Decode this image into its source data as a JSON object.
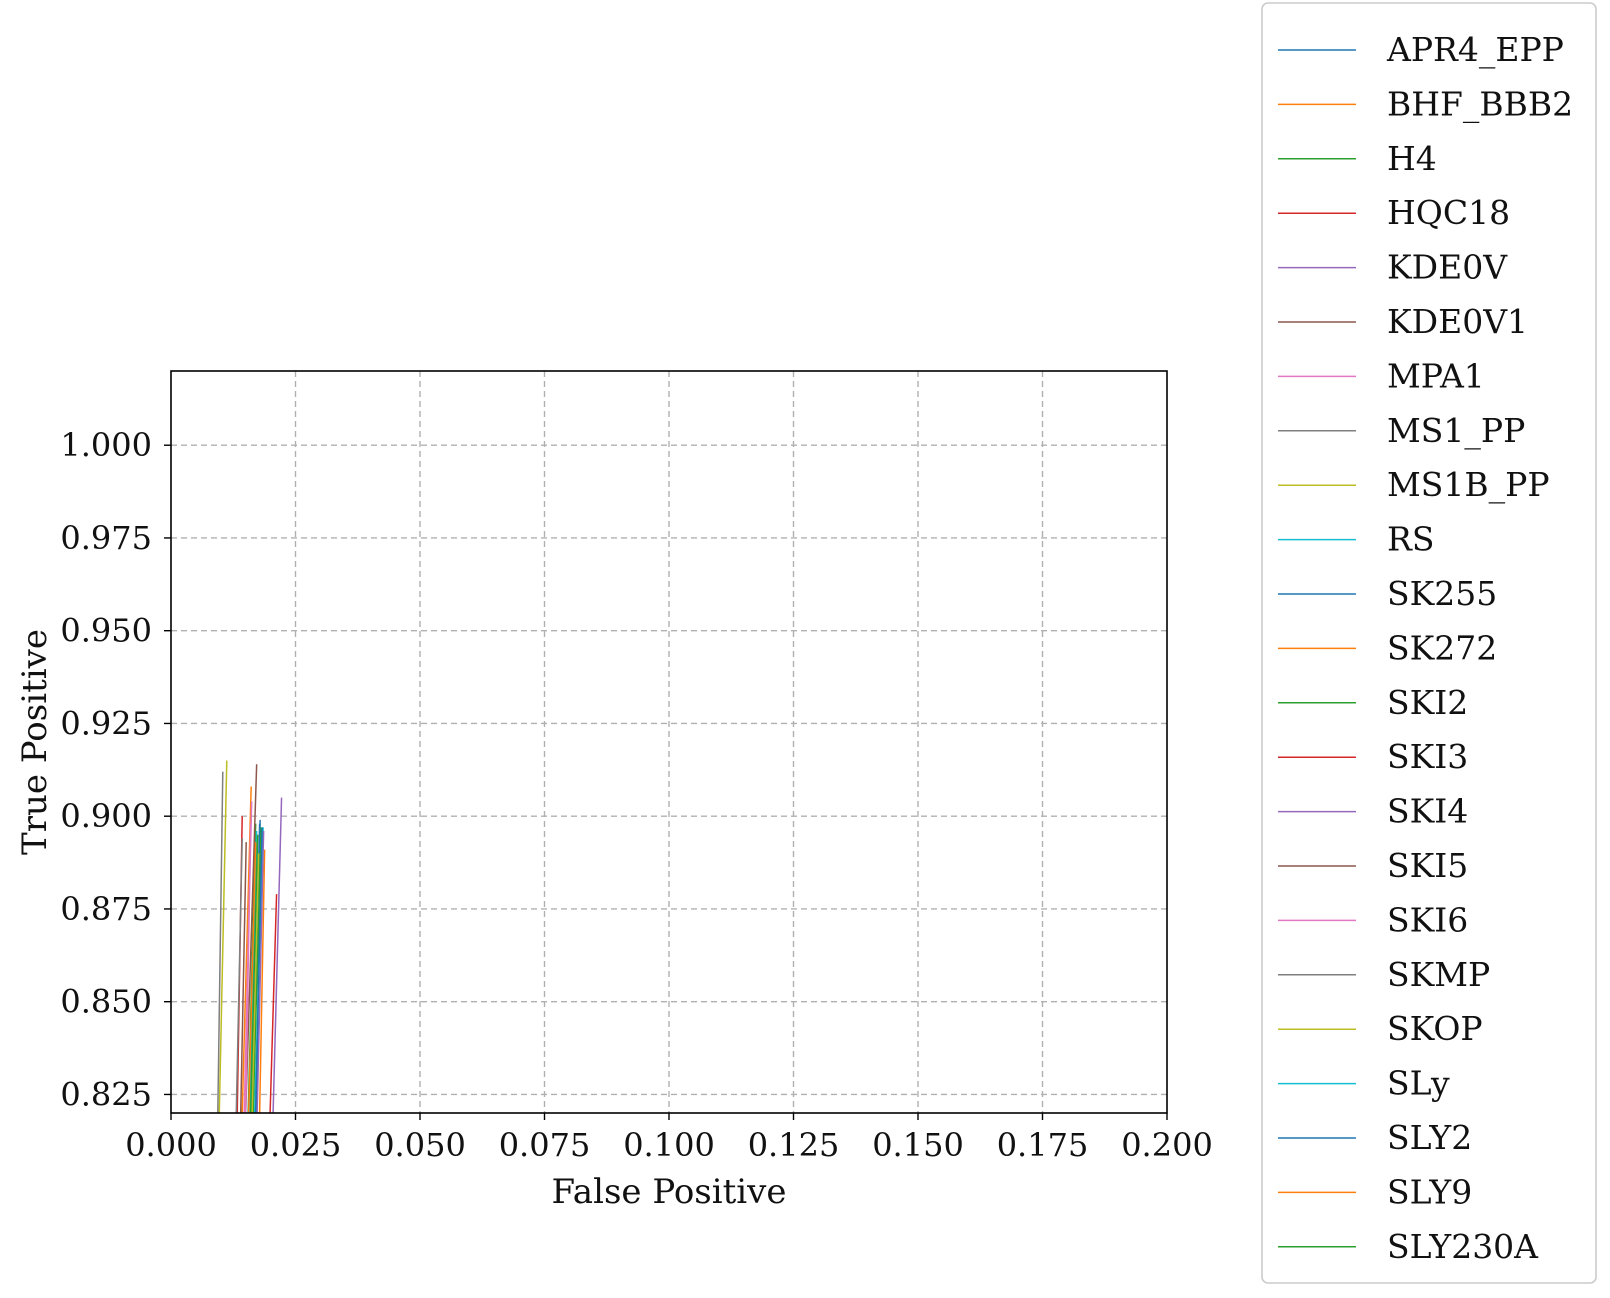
{
  "chart_data": {
    "type": "line",
    "title": "",
    "xlabel": "False Positive",
    "ylabel": "True Positive",
    "xlim": [
      0.0,
      0.2
    ],
    "ylim": [
      0.82,
      1.02
    ],
    "grid": true,
    "legend_placement": "outside-right",
    "x_ticks": [
      0.0,
      0.025,
      0.05,
      0.075,
      0.1,
      0.125,
      0.15,
      0.175,
      0.2
    ],
    "x_tick_labels": [
      "0.000",
      "0.025",
      "0.050",
      "0.075",
      "0.100",
      "0.125",
      "0.150",
      "0.175",
      "0.200"
    ],
    "y_ticks": [
      0.825,
      0.85,
      0.875,
      0.9,
      0.925,
      0.95,
      0.975,
      1.0
    ],
    "y_tick_labels": [
      "0.825",
      "0.850",
      "0.875",
      "0.900",
      "0.925",
      "0.950",
      "0.975",
      "1.000"
    ],
    "series": [
      {
        "name": "APR4_EPP",
        "color": "#1f77b4",
        "x": [
          0.0172,
          0.0179
        ],
        "y": [
          0.82,
          0.899
        ]
      },
      {
        "name": "BHF_BBB2",
        "color": "#ff7f0e",
        "x": [
          0.0143,
          0.0161
        ],
        "y": [
          0.82,
          0.908
        ]
      },
      {
        "name": "H4",
        "color": "#2ca02c",
        "x": [
          0.0155,
          0.017
        ],
        "y": [
          0.82,
          0.898
        ]
      },
      {
        "name": "HQC18",
        "color": "#d62728",
        "x": [
          0.0133,
          0.0143
        ],
        "y": [
          0.82,
          0.9
        ]
      },
      {
        "name": "KDE0V",
        "color": "#9467bd",
        "x": [
          0.0205,
          0.0222
        ],
        "y": [
          0.82,
          0.905
        ]
      },
      {
        "name": "KDE0V1",
        "color": "#8c564b",
        "x": [
          0.015,
          0.0172
        ],
        "y": [
          0.82,
          0.914
        ]
      },
      {
        "name": "MPA1",
        "color": "#e377c2",
        "x": [
          0.0147,
          0.0162
        ],
        "y": [
          0.82,
          0.904
        ]
      },
      {
        "name": "MS1_PP",
        "color": "#7f7f7f",
        "x": [
          0.0131,
          0.0143
        ],
        "y": [
          0.82,
          0.894
        ]
      },
      {
        "name": "MS1B_PP",
        "color": "#bcbd22",
        "x": [
          0.0097,
          0.0112
        ],
        "y": [
          0.82,
          0.915
        ]
      },
      {
        "name": "RS",
        "color": "#17becf",
        "x": [
          0.0168,
          0.0185
        ],
        "y": [
          0.82,
          0.897
        ]
      },
      {
        "name": "SK255",
        "color": "#1f77b4",
        "x": [
          0.0163,
          0.0178
        ],
        "y": [
          0.82,
          0.898
        ]
      },
      {
        "name": "SK272",
        "color": "#ff7f0e",
        "x": [
          0.0178,
          0.0188
        ],
        "y": [
          0.82,
          0.891
        ]
      },
      {
        "name": "SKI2",
        "color": "#2ca02c",
        "x": [
          0.0165,
          0.0181
        ],
        "y": [
          0.82,
          0.897
        ]
      },
      {
        "name": "SKI3",
        "color": "#d62728",
        "x": [
          0.0199,
          0.0212
        ],
        "y": [
          0.82,
          0.879
        ]
      },
      {
        "name": "SKI4",
        "color": "#9467bd",
        "x": [
          0.0173,
          0.0186
        ],
        "y": [
          0.82,
          0.896
        ]
      },
      {
        "name": "SKI5",
        "color": "#8c564b",
        "x": [
          0.014,
          0.0151
        ],
        "y": [
          0.82,
          0.893
        ]
      },
      {
        "name": "SKI6",
        "color": "#e377c2",
        "x": [
          0.015,
          0.016
        ],
        "y": [
          0.82,
          0.898
        ]
      },
      {
        "name": "SKMP",
        "color": "#7f7f7f",
        "x": [
          0.0094,
          0.0104
        ],
        "y": [
          0.82,
          0.912
        ]
      },
      {
        "name": "SKOP",
        "color": "#bcbd22",
        "x": [
          0.0163,
          0.0176
        ],
        "y": [
          0.82,
          0.89
        ]
      },
      {
        "name": "SLy",
        "color": "#17becf",
        "x": [
          0.0158,
          0.0172
        ],
        "y": [
          0.82,
          0.896
        ]
      },
      {
        "name": "SLY2",
        "color": "#1f77b4",
        "x": [
          0.017,
          0.0183
        ],
        "y": [
          0.82,
          0.897
        ]
      },
      {
        "name": "SLY9",
        "color": "#ff7f0e",
        "x": [
          0.0156,
          0.017
        ],
        "y": [
          0.82,
          0.893
        ]
      },
      {
        "name": "SLY230A",
        "color": "#2ca02c",
        "x": [
          0.016,
          0.0174
        ],
        "y": [
          0.82,
          0.895
        ]
      }
    ]
  }
}
